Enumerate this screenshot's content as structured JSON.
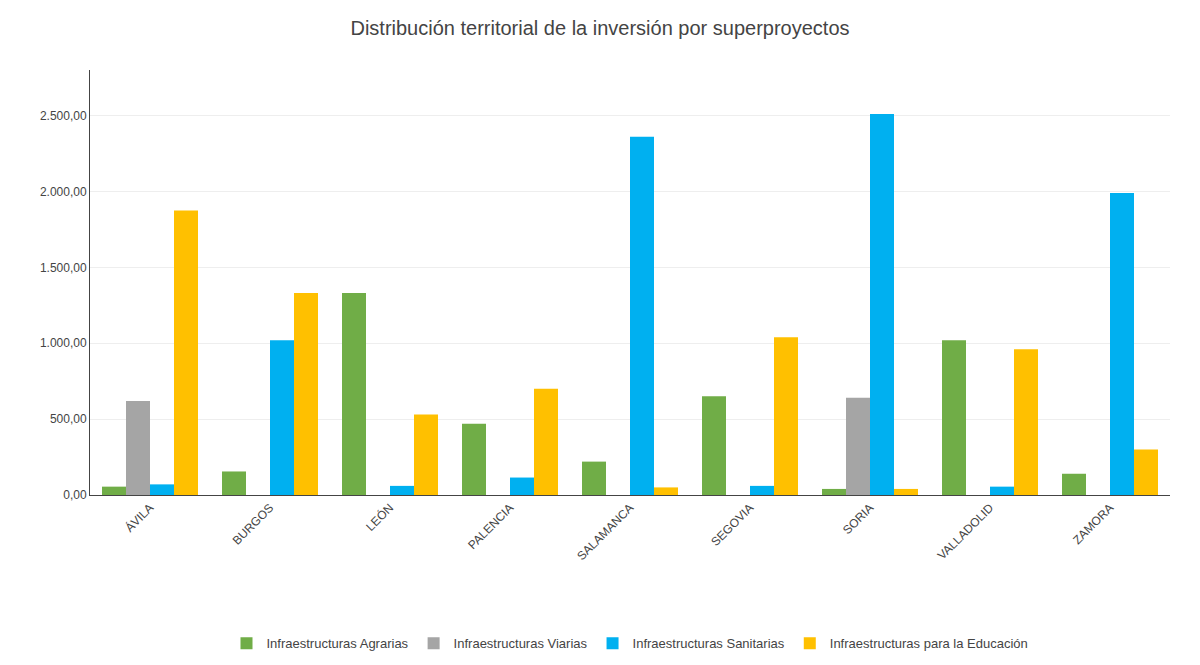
{
  "chart_data": {
    "type": "bar",
    "title": "Distribución territorial de la inversión por superproyectos",
    "categories": [
      "ÁVILA",
      "BURGOS",
      "LEÓN",
      "PALENCIA",
      "SALAMANCA",
      "SEGOVIA",
      "SORIA",
      "VALLADOLID",
      "ZAMORA"
    ],
    "series": [
      {
        "name": "Infraestructuras Agrarias",
        "color": "#70ad47",
        "values": [
          55,
          155,
          1330,
          470,
          220,
          650,
          40,
          1020,
          140
        ]
      },
      {
        "name": "Infraestructuras Viarias",
        "color": "#a5a5a5",
        "values": [
          620,
          0,
          0,
          0,
          0,
          0,
          640,
          0,
          0
        ]
      },
      {
        "name": "Infraestructuras Sanitarias",
        "color": "#00b0f0",
        "values": [
          70,
          1020,
          60,
          115,
          2360,
          60,
          2510,
          55,
          1990
        ]
      },
      {
        "name": "Infraestructuras para la Educación",
        "color": "#ffc000",
        "values": [
          1875,
          1330,
          530,
          700,
          50,
          1040,
          40,
          960,
          300
        ]
      }
    ],
    "ylim": [
      0,
      2800
    ],
    "yticks": [
      {
        "value": 0,
        "label": "0,00"
      },
      {
        "value": 500,
        "label": "500,00"
      },
      {
        "value": 1000,
        "label": "1.000,00"
      },
      {
        "value": 1500,
        "label": "1.500,00"
      },
      {
        "value": 2000,
        "label": "2.000,00"
      },
      {
        "value": 2500,
        "label": "2.500,00"
      }
    ],
    "grid": true,
    "legend": "bottom"
  }
}
